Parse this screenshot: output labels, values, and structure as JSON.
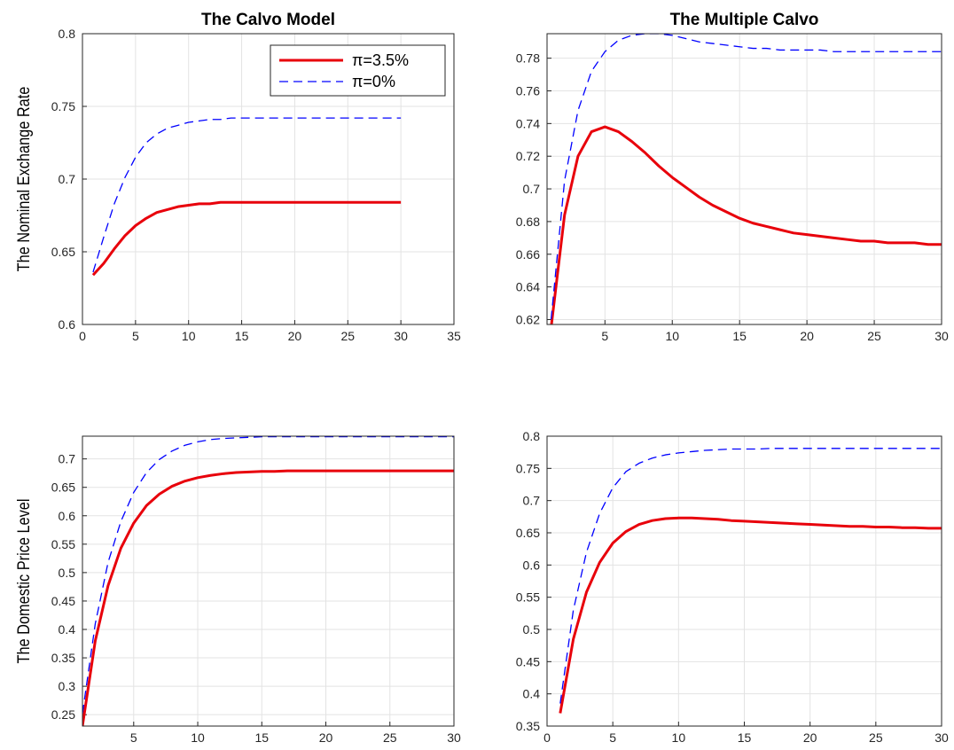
{
  "chart_data": [
    {
      "type": "line",
      "title": "The Calvo Model",
      "xlabel": "",
      "ylabel": "The Nominal Exchange Rate",
      "xlim": [
        0,
        35
      ],
      "ylim": [
        0.6,
        0.8
      ],
      "xticks": [
        "0",
        "5",
        "10",
        "15",
        "20",
        "25",
        "30",
        "35"
      ],
      "yticks": [
        "0.6",
        "0.65",
        "0.7",
        "0.75",
        "0.8"
      ],
      "grid": true,
      "legend": {
        "position": "top-right",
        "entries": [
          "π=3.5%",
          "π=0%"
        ]
      },
      "series": [
        {
          "name": "π=3.5%",
          "color": "#e8000b",
          "style": "solid",
          "x": [
            1,
            2,
            3,
            4,
            5,
            6,
            7,
            8,
            9,
            10,
            11,
            12,
            13,
            14,
            15,
            16,
            17,
            18,
            19,
            20,
            21,
            22,
            23,
            24,
            25,
            26,
            27,
            28,
            29,
            30
          ],
          "values": [
            0.634,
            0.642,
            0.652,
            0.661,
            0.668,
            0.673,
            0.677,
            0.679,
            0.681,
            0.682,
            0.683,
            0.683,
            0.684,
            0.684,
            0.684,
            0.684,
            0.684,
            0.684,
            0.684,
            0.684,
            0.684,
            0.684,
            0.684,
            0.684,
            0.684,
            0.684,
            0.684,
            0.684,
            0.684,
            0.684
          ]
        },
        {
          "name": "π=0%",
          "color": "#0000ff",
          "style": "dashed",
          "x": [
            1,
            2,
            3,
            4,
            5,
            6,
            7,
            8,
            9,
            10,
            11,
            12,
            13,
            14,
            15,
            16,
            17,
            18,
            19,
            20,
            21,
            22,
            23,
            24,
            25,
            26,
            27,
            28,
            29,
            30
          ],
          "values": [
            0.636,
            0.66,
            0.683,
            0.701,
            0.715,
            0.725,
            0.731,
            0.735,
            0.737,
            0.739,
            0.74,
            0.741,
            0.741,
            0.742,
            0.742,
            0.742,
            0.742,
            0.742,
            0.742,
            0.742,
            0.742,
            0.742,
            0.742,
            0.742,
            0.742,
            0.742,
            0.742,
            0.742,
            0.742,
            0.742
          ]
        }
      ]
    },
    {
      "type": "line",
      "title": "The Multiple Calvo",
      "xlabel": "",
      "ylabel": "",
      "xlim": [
        0.7,
        30
      ],
      "ylim": [
        0.617,
        0.795
      ],
      "xticks": [
        "5",
        "10",
        "15",
        "20",
        "25",
        "30"
      ],
      "yticks": [
        "0.62",
        "0.64",
        "0.66",
        "0.68",
        "0.7",
        "0.72",
        "0.74",
        "0.76",
        "0.78"
      ],
      "grid": true,
      "series": [
        {
          "name": "π=3.5%",
          "color": "#e8000b",
          "style": "solid",
          "x": [
            1,
            2,
            3,
            4,
            5,
            6,
            7,
            8,
            9,
            10,
            11,
            12,
            13,
            14,
            15,
            16,
            17,
            18,
            19,
            20,
            21,
            22,
            23,
            24,
            25,
            26,
            27,
            28,
            29,
            30
          ],
          "values": [
            0.615,
            0.684,
            0.72,
            0.735,
            0.738,
            0.735,
            0.729,
            0.722,
            0.714,
            0.707,
            0.701,
            0.695,
            0.69,
            0.686,
            0.682,
            0.679,
            0.677,
            0.675,
            0.673,
            0.672,
            0.671,
            0.67,
            0.669,
            0.668,
            0.668,
            0.667,
            0.667,
            0.667,
            0.666,
            0.666
          ]
        },
        {
          "name": "π=0%",
          "color": "#0000ff",
          "style": "dashed",
          "x": [
            1,
            2,
            3,
            4,
            5,
            6,
            7,
            8,
            9,
            10,
            11,
            12,
            13,
            14,
            15,
            16,
            17,
            18,
            19,
            20,
            21,
            22,
            23,
            24,
            25,
            26,
            27,
            28,
            29,
            30
          ],
          "values": [
            0.62,
            0.705,
            0.748,
            0.772,
            0.784,
            0.791,
            0.794,
            0.795,
            0.795,
            0.794,
            0.792,
            0.79,
            0.789,
            0.788,
            0.787,
            0.786,
            0.786,
            0.785,
            0.785,
            0.785,
            0.785,
            0.784,
            0.784,
            0.784,
            0.784,
            0.784,
            0.784,
            0.784,
            0.784,
            0.784
          ]
        }
      ]
    },
    {
      "type": "line",
      "title": "",
      "xlabel": "",
      "ylabel": "The Domestic Price Level",
      "xlim": [
        1,
        30
      ],
      "ylim": [
        0.23,
        0.74
      ],
      "xticks": [
        "5",
        "10",
        "15",
        "20",
        "25",
        "30"
      ],
      "yticks": [
        "0.25",
        "0.3",
        "0.35",
        "0.4",
        "0.45",
        "0.5",
        "0.55",
        "0.6",
        "0.65",
        "0.7"
      ],
      "grid": true,
      "series": [
        {
          "name": "π=3.5%",
          "color": "#e8000b",
          "style": "solid",
          "x": [
            1,
            2,
            3,
            4,
            5,
            6,
            7,
            8,
            9,
            10,
            11,
            12,
            13,
            14,
            15,
            16,
            17,
            18,
            19,
            20,
            21,
            22,
            23,
            24,
            25,
            26,
            27,
            28,
            29,
            30
          ],
          "values": [
            0.23,
            0.38,
            0.477,
            0.543,
            0.587,
            0.618,
            0.638,
            0.652,
            0.661,
            0.667,
            0.671,
            0.674,
            0.676,
            0.677,
            0.678,
            0.678,
            0.679,
            0.679,
            0.679,
            0.679,
            0.679,
            0.679,
            0.679,
            0.679,
            0.679,
            0.679,
            0.679,
            0.679,
            0.679,
            0.679
          ]
        },
        {
          "name": "π=0%",
          "color": "#0000ff",
          "style": "dashed",
          "x": [
            1,
            2,
            3,
            4,
            5,
            6,
            7,
            8,
            9,
            10,
            11,
            12,
            13,
            14,
            15,
            16,
            17,
            18,
            19,
            20,
            21,
            22,
            23,
            24,
            25,
            26,
            27,
            28,
            29,
            30
          ],
          "values": [
            0.252,
            0.41,
            0.518,
            0.59,
            0.641,
            0.676,
            0.699,
            0.714,
            0.724,
            0.73,
            0.734,
            0.736,
            0.737,
            0.738,
            0.739,
            0.739,
            0.739,
            0.739,
            0.739,
            0.739,
            0.739,
            0.739,
            0.739,
            0.739,
            0.739,
            0.739,
            0.739,
            0.739,
            0.739,
            0.739
          ]
        }
      ]
    },
    {
      "type": "line",
      "title": "",
      "xlabel": "",
      "ylabel": "",
      "xlim": [
        0,
        30
      ],
      "ylim": [
        0.35,
        0.8
      ],
      "xticks": [
        "0",
        "5",
        "10",
        "15",
        "20",
        "25",
        "30"
      ],
      "yticks": [
        "0.35",
        "0.4",
        "0.45",
        "0.5",
        "0.55",
        "0.6",
        "0.65",
        "0.7",
        "0.75",
        "0.8"
      ],
      "grid": true,
      "series": [
        {
          "name": "π=3.5%",
          "color": "#e8000b",
          "style": "solid",
          "x": [
            1,
            2,
            3,
            4,
            5,
            6,
            7,
            8,
            9,
            10,
            11,
            12,
            13,
            14,
            15,
            16,
            17,
            18,
            19,
            20,
            21,
            22,
            23,
            24,
            25,
            26,
            27,
            28,
            29,
            30
          ],
          "values": [
            0.37,
            0.485,
            0.558,
            0.604,
            0.634,
            0.652,
            0.663,
            0.669,
            0.672,
            0.673,
            0.673,
            0.672,
            0.671,
            0.669,
            0.668,
            0.667,
            0.666,
            0.665,
            0.664,
            0.663,
            0.662,
            0.661,
            0.66,
            0.66,
            0.659,
            0.659,
            0.658,
            0.658,
            0.657,
            0.657
          ]
        },
        {
          "name": "π=0%",
          "color": "#0000ff",
          "style": "dashed",
          "x": [
            1,
            2,
            3,
            4,
            5,
            6,
            7,
            8,
            9,
            10,
            11,
            12,
            13,
            14,
            15,
            16,
            17,
            18,
            19,
            20,
            21,
            22,
            23,
            24,
            25,
            26,
            27,
            28,
            29,
            30
          ],
          "values": [
            0.385,
            0.53,
            0.62,
            0.68,
            0.72,
            0.745,
            0.758,
            0.766,
            0.771,
            0.774,
            0.776,
            0.778,
            0.779,
            0.78,
            0.78,
            0.78,
            0.781,
            0.781,
            0.781,
            0.781,
            0.781,
            0.781,
            0.781,
            0.781,
            0.781,
            0.781,
            0.781,
            0.781,
            0.781,
            0.781
          ]
        }
      ]
    }
  ]
}
